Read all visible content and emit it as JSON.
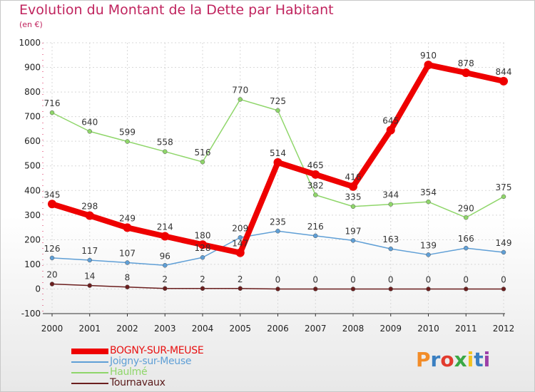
{
  "header": {
    "title": "Evolution du Montant de la Dette par Habitant",
    "subtitle": "(en €)"
  },
  "logo": {
    "text": "Proxiti",
    "colors": [
      "#f28c28",
      "#3a7fc1",
      "#e23b2e",
      "#3aa845",
      "#f2c21f",
      "#3a7fc1",
      "#9b3fa8"
    ]
  },
  "colors": {
    "title": "#c0245e",
    "axis": "#dd2255",
    "grid": "#d8d8d8"
  },
  "chart_data": {
    "type": "line",
    "title": "Evolution du Montant de la Dette par Habitant",
    "ylabel": "(en €)",
    "xlabel": "",
    "x": [
      "2000",
      "2001",
      "2002",
      "2003",
      "2004",
      "2005",
      "2006",
      "2007",
      "2008",
      "2009",
      "2010",
      "2011",
      "2012"
    ],
    "yticks": [
      "-100",
      "0",
      "100",
      "200",
      "300",
      "400",
      "500",
      "600",
      "700",
      "800",
      "900",
      "1000"
    ],
    "ylim": [
      -100,
      1000
    ],
    "grid": true,
    "legend_position": "bottom-left",
    "series": [
      {
        "name": "BOGNY-SUR-MEUSE",
        "color": "#ee0000",
        "values": [
          345,
          298,
          249,
          214,
          180,
          147,
          514,
          465,
          416,
          645,
          910,
          878,
          844
        ],
        "labels": [
          "345",
          "298",
          "249",
          "214",
          "180",
          "147",
          "514",
          "465",
          "416",
          "645",
          "910",
          "878",
          "844"
        ]
      },
      {
        "name": "Joigny-sur-Meuse",
        "color": "#5f9fd6",
        "values": [
          126,
          117,
          107,
          96,
          128,
          209,
          235,
          216,
          197,
          163,
          139,
          166,
          149
        ],
        "labels": [
          "126",
          "117",
          "107",
          "96",
          "128",
          "209",
          "235",
          "216",
          "197",
          "163",
          "139",
          "166",
          "149"
        ]
      },
      {
        "name": "Haulmé",
        "color": "#8fd66a",
        "values": [
          716,
          640,
          599,
          558,
          516,
          770,
          725,
          382,
          335,
          344,
          354,
          290,
          375
        ],
        "labels": [
          "716",
          "640",
          "599",
          "558",
          "516",
          "770",
          "725",
          "382",
          "335",
          "344",
          "354",
          "290",
          "375"
        ]
      },
      {
        "name": "Tournavaux",
        "color": "#6b1e1e",
        "values": [
          20,
          14,
          8,
          2,
          2,
          2,
          0,
          0,
          0,
          0,
          0,
          0,
          0
        ],
        "labels": [
          "20",
          "14",
          "8",
          "2",
          "2",
          "2",
          "0",
          "0",
          "0",
          "0",
          "0",
          "0",
          "0"
        ]
      }
    ]
  }
}
